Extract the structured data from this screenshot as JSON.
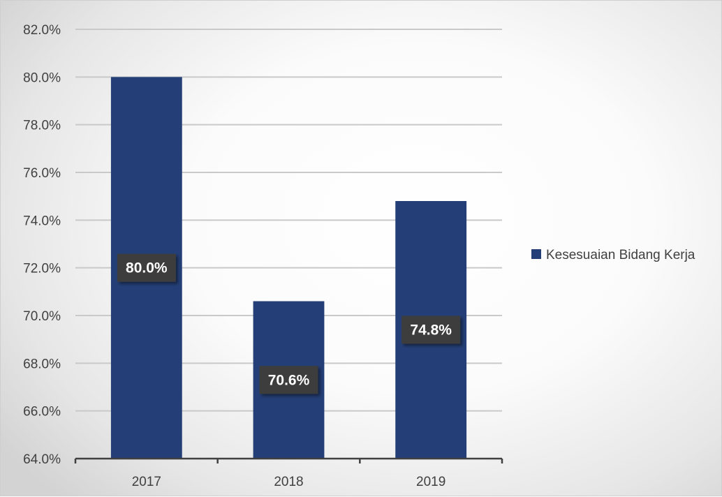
{
  "chart_data": {
    "type": "bar",
    "categories": [
      "2017",
      "2018",
      "2019"
    ],
    "series": [
      {
        "name": "Kesesuaian Bidang Kerja",
        "values": [
          80.0,
          70.6,
          74.8
        ]
      }
    ],
    "value_labels": [
      "80.0%",
      "70.6%",
      "74.8%"
    ],
    "yticks": [
      "64.0%",
      "66.0%",
      "68.0%",
      "70.0%",
      "72.0%",
      "74.0%",
      "76.0%",
      "78.0%",
      "80.0%",
      "82.0%"
    ],
    "ylim": [
      64,
      82
    ],
    "title": "",
    "xlabel": "",
    "ylabel": "",
    "grid": true,
    "legend_position": "right",
    "colors": {
      "bar": "#243f77",
      "label_box": "#3e3e3e",
      "label_text": "#ffffff",
      "grid": "#c9c9c9",
      "axis": "#404040",
      "text": "#404040"
    }
  }
}
